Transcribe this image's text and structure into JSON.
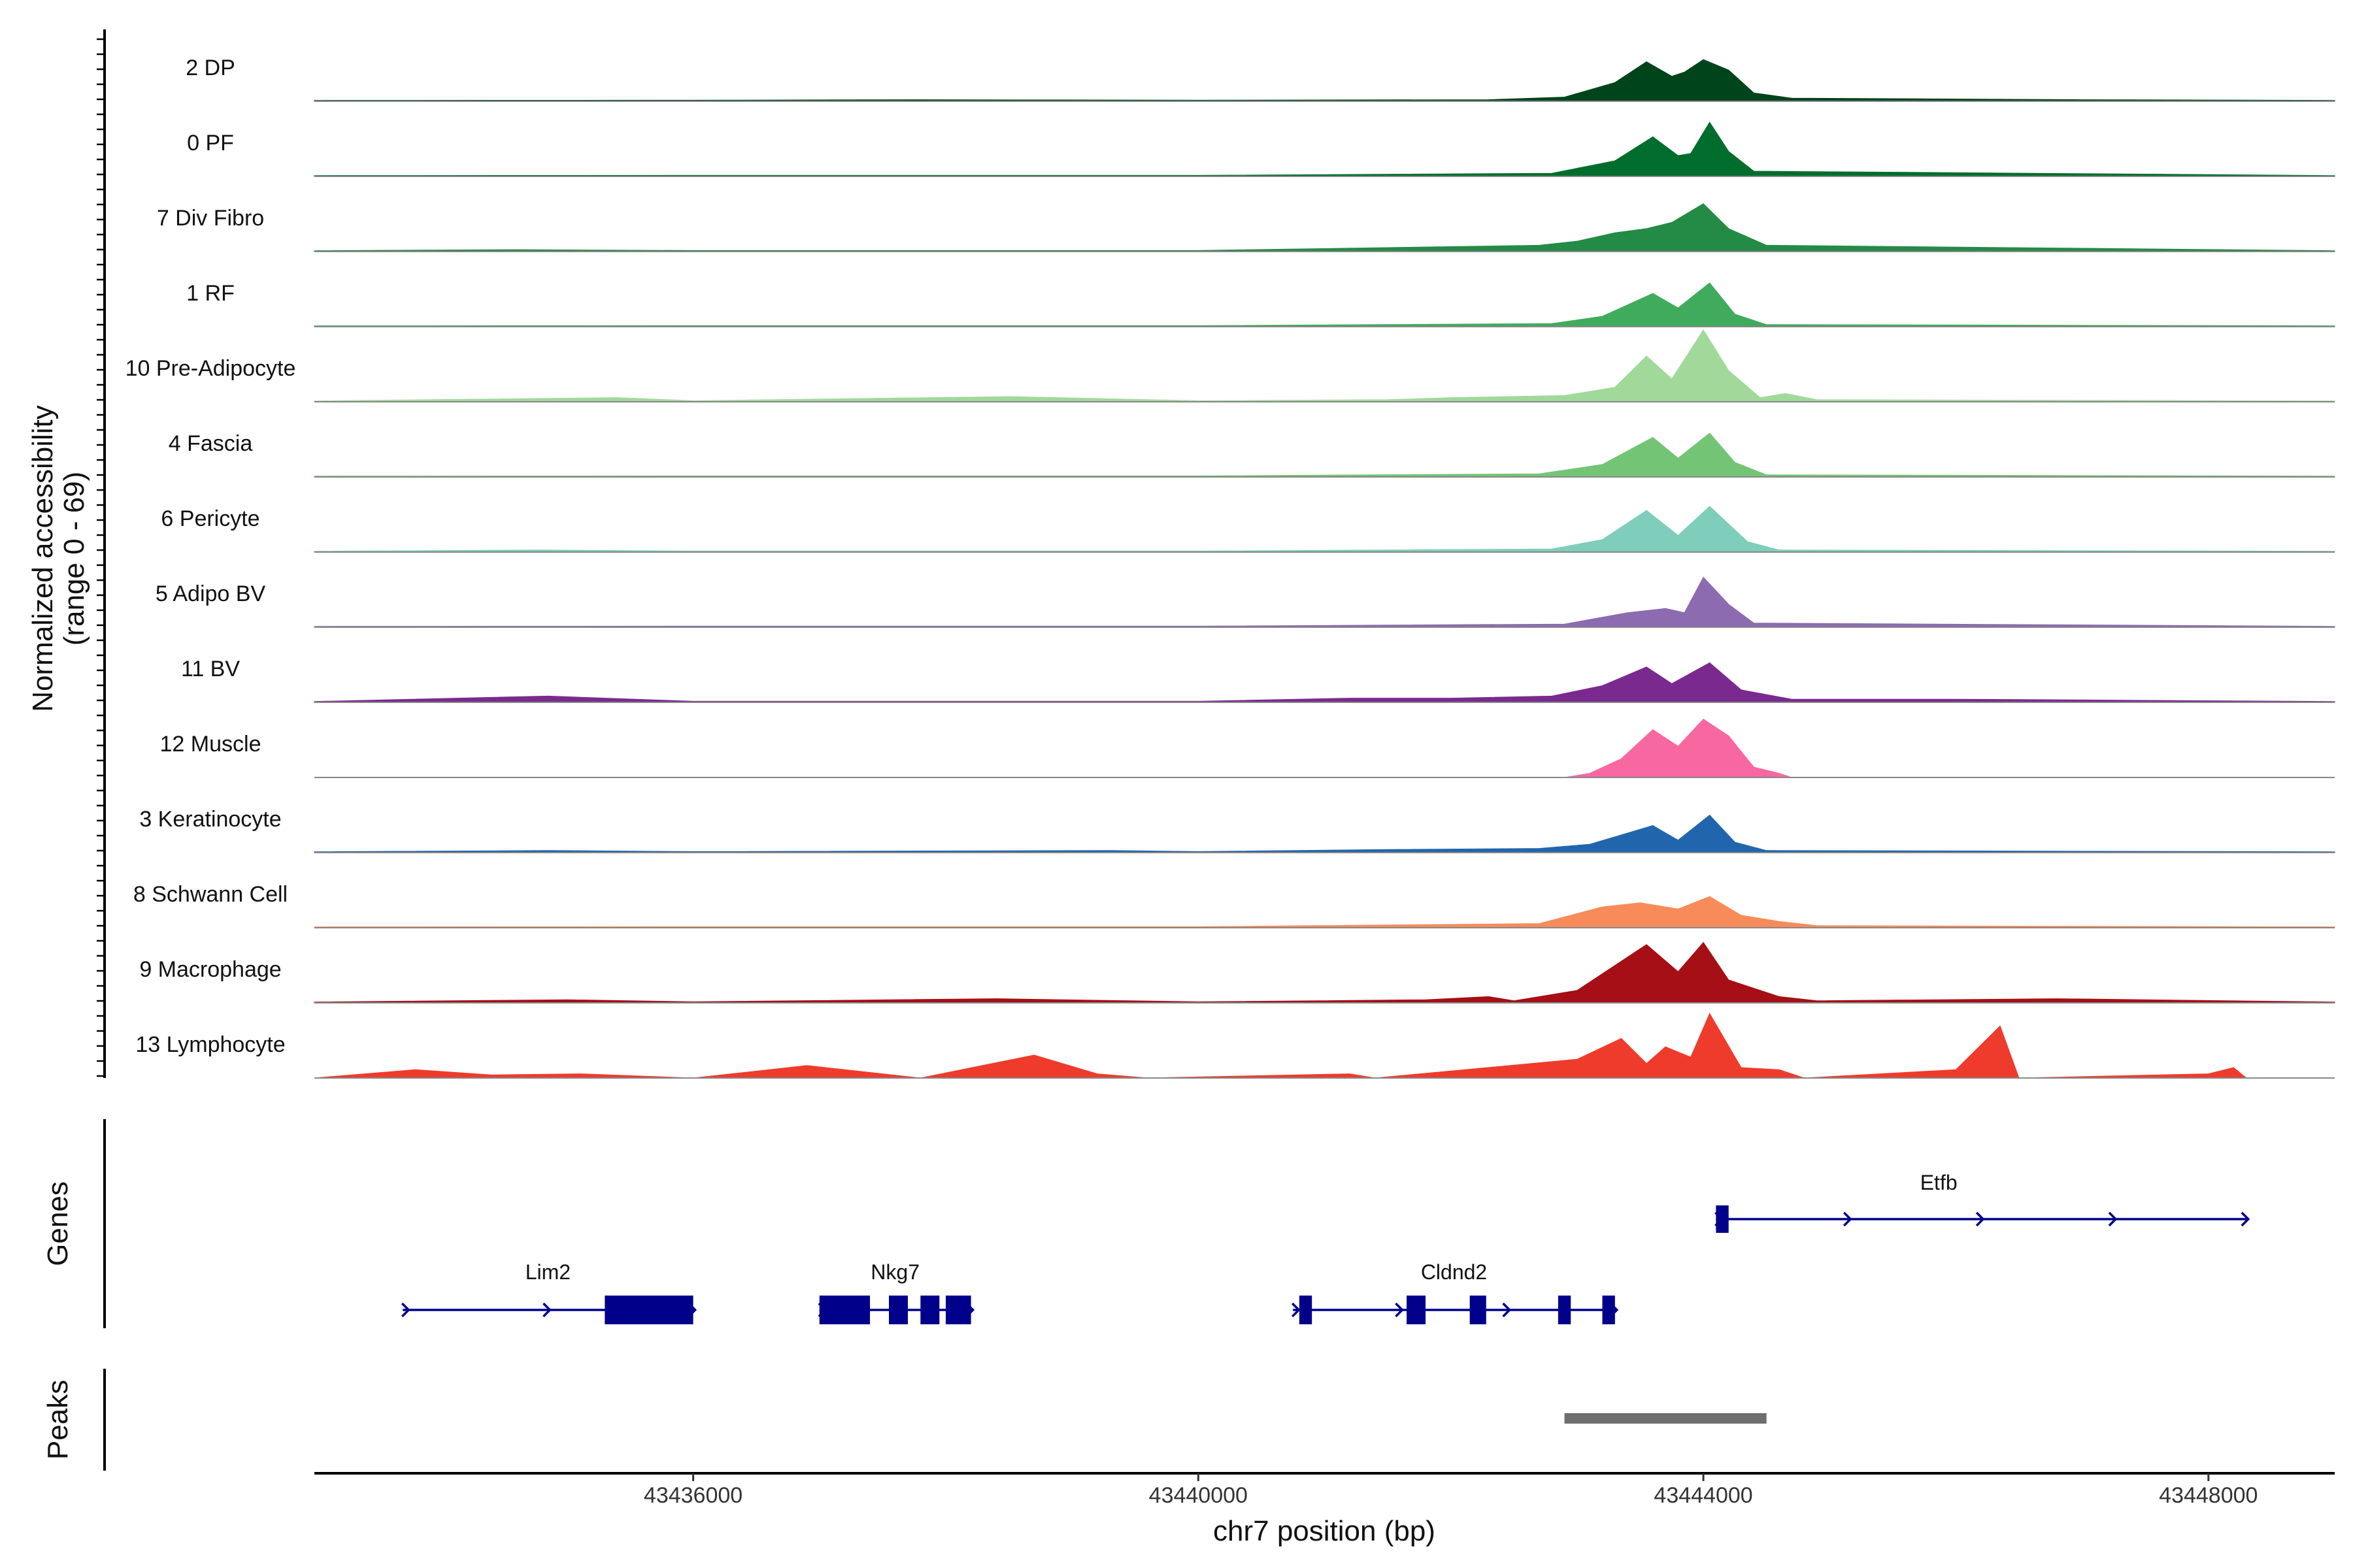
{
  "chart_data": {
    "type": "area",
    "chromosome": "chr7",
    "region": [
      43433000,
      43449000
    ],
    "xlabel": "chr7 position (bp)",
    "ylabel": "Normalized accessibility",
    "ylabel_range": "(range 0 - 69)",
    "ylim": [
      0,
      69
    ],
    "x_ticks": [
      {
        "value": 43436000,
        "label": "43436000"
      },
      {
        "value": 43440000,
        "label": "43440000"
      },
      {
        "value": 43444000,
        "label": "43444000"
      },
      {
        "value": 43448000,
        "label": "43448000"
      }
    ],
    "series": [
      {
        "name": "2 DP",
        "color": "#00441b",
        "values": [
          [
            43433000,
            0.8
          ],
          [
            43436000,
            1
          ],
          [
            43437800,
            1.5
          ],
          [
            43440000,
            1
          ],
          [
            43442300,
            1.5
          ],
          [
            43442900,
            4
          ],
          [
            43443300,
            18
          ],
          [
            43443550,
            38
          ],
          [
            43443750,
            24
          ],
          [
            43443850,
            28
          ],
          [
            43444000,
            40
          ],
          [
            43444200,
            30
          ],
          [
            43444400,
            8
          ],
          [
            43444700,
            3
          ],
          [
            43447000,
            1.5
          ],
          [
            43449000,
            0.8
          ]
        ]
      },
      {
        "name": "0 PF",
        "color": "#006d2c",
        "values": [
          [
            43433000,
            0.8
          ],
          [
            43436000,
            1
          ],
          [
            43440000,
            1
          ],
          [
            43442800,
            3
          ],
          [
            43443300,
            15
          ],
          [
            43443600,
            38
          ],
          [
            43443800,
            20
          ],
          [
            43443900,
            22
          ],
          [
            43444050,
            52
          ],
          [
            43444200,
            24
          ],
          [
            43444400,
            5
          ],
          [
            43449000,
            0.8
          ]
        ]
      },
      {
        "name": "7 Div Fibro",
        "color": "#238b45",
        "values": [
          [
            43433000,
            0.8
          ],
          [
            43434600,
            1.8
          ],
          [
            43436000,
            1
          ],
          [
            43440000,
            1
          ],
          [
            43442700,
            6
          ],
          [
            43443000,
            10
          ],
          [
            43443300,
            18
          ],
          [
            43443550,
            22
          ],
          [
            43443750,
            28
          ],
          [
            43444000,
            46
          ],
          [
            43444200,
            22
          ],
          [
            43444500,
            6
          ],
          [
            43449000,
            0.8
          ]
        ]
      },
      {
        "name": "1 RF",
        "color": "#41ab5d",
        "values": [
          [
            43433000,
            0.8
          ],
          [
            43436000,
            1
          ],
          [
            43440000,
            1
          ],
          [
            43442800,
            3
          ],
          [
            43443200,
            10
          ],
          [
            43443600,
            32
          ],
          [
            43443800,
            18
          ],
          [
            43444050,
            42
          ],
          [
            43444250,
            12
          ],
          [
            43444500,
            2
          ],
          [
            43449000,
            0.8
          ]
        ]
      },
      {
        "name": "10 Pre-Adipocyte",
        "color": "#a1d99b",
        "values": [
          [
            43433000,
            0.8
          ],
          [
            43435400,
            4
          ],
          [
            43436000,
            1
          ],
          [
            43438500,
            5
          ],
          [
            43440000,
            1
          ],
          [
            43441500,
            2
          ],
          [
            43442000,
            4
          ],
          [
            43442900,
            6
          ],
          [
            43443300,
            14
          ],
          [
            43443550,
            44
          ],
          [
            43443750,
            22
          ],
          [
            43444000,
            69
          ],
          [
            43444200,
            30
          ],
          [
            43444450,
            4
          ],
          [
            43444650,
            8
          ],
          [
            43444900,
            2
          ],
          [
            43449000,
            0.8
          ]
        ]
      },
      {
        "name": "4 Fascia",
        "color": "#74c476",
        "values": [
          [
            43433000,
            0.8
          ],
          [
            43436000,
            1
          ],
          [
            43440000,
            1
          ],
          [
            43442700,
            3
          ],
          [
            43443200,
            12
          ],
          [
            43443600,
            38
          ],
          [
            43443800,
            18
          ],
          [
            43444050,
            42
          ],
          [
            43444250,
            14
          ],
          [
            43444500,
            2
          ],
          [
            43449000,
            0.8
          ]
        ]
      },
      {
        "name": "6 Pericyte",
        "color": "#7fcdbb",
        "values": [
          [
            43433000,
            0.8
          ],
          [
            43434800,
            2
          ],
          [
            43436000,
            1
          ],
          [
            43440000,
            1
          ],
          [
            43442800,
            3
          ],
          [
            43443200,
            12
          ],
          [
            43443550,
            40
          ],
          [
            43443800,
            16
          ],
          [
            43444050,
            44
          ],
          [
            43444350,
            10
          ],
          [
            43444600,
            2
          ],
          [
            43449000,
            0.8
          ]
        ]
      },
      {
        "name": "5 Adipo BV",
        "color": "#8c6bb1",
        "values": [
          [
            43433000,
            0.8
          ],
          [
            43436000,
            1
          ],
          [
            43440000,
            1
          ],
          [
            43442900,
            3
          ],
          [
            43443400,
            14
          ],
          [
            43443700,
            18
          ],
          [
            43443850,
            14
          ],
          [
            43444000,
            48
          ],
          [
            43444200,
            22
          ],
          [
            43444400,
            4
          ],
          [
            43449000,
            0.8
          ]
        ]
      },
      {
        "name": "11 BV",
        "color": "#7a2a8e",
        "values": [
          [
            43433000,
            0.8
          ],
          [
            43434850,
            6
          ],
          [
            43436000,
            1
          ],
          [
            43440000,
            1
          ],
          [
            43441200,
            4
          ],
          [
            43442000,
            4
          ],
          [
            43442800,
            6
          ],
          [
            43443200,
            16
          ],
          [
            43443550,
            34
          ],
          [
            43443750,
            18
          ],
          [
            43444050,
            38
          ],
          [
            43444300,
            12
          ],
          [
            43444700,
            3
          ],
          [
            43446000,
            3
          ],
          [
            43449000,
            0.8
          ]
        ]
      },
      {
        "name": "12 Muscle",
        "color": "#f768a1",
        "values": [
          [
            43442900,
            0
          ],
          [
            43443100,
            4
          ],
          [
            43443350,
            18
          ],
          [
            43443600,
            46
          ],
          [
            43443800,
            30
          ],
          [
            43444000,
            56
          ],
          [
            43444200,
            40
          ],
          [
            43444400,
            10
          ],
          [
            43444600,
            4
          ],
          [
            43444700,
            0
          ]
        ]
      },
      {
        "name": "3 Keratinocyte",
        "color": "#2166ac",
        "values": [
          [
            43433000,
            0.8
          ],
          [
            43434850,
            2
          ],
          [
            43436000,
            1
          ],
          [
            43439300,
            2
          ],
          [
            43440000,
            1
          ],
          [
            43441500,
            3
          ],
          [
            43442700,
            4
          ],
          [
            43443100,
            8
          ],
          [
            43443600,
            26
          ],
          [
            43443800,
            12
          ],
          [
            43444050,
            36
          ],
          [
            43444250,
            10
          ],
          [
            43444500,
            2
          ],
          [
            43449000,
            0.8
          ]
        ]
      },
      {
        "name": "8 Schwann Cell",
        "color": "#f78c5a",
        "values": [
          [
            43433000,
            0.8
          ],
          [
            43436000,
            1
          ],
          [
            43440000,
            1
          ],
          [
            43442700,
            4
          ],
          [
            43443200,
            20
          ],
          [
            43443500,
            24
          ],
          [
            43443800,
            18
          ],
          [
            43444050,
            30
          ],
          [
            43444300,
            12
          ],
          [
            43444600,
            6
          ],
          [
            43444900,
            2
          ],
          [
            43449000,
            0.8
          ]
        ]
      },
      {
        "name": "9 Macrophage",
        "color": "#a50f15",
        "values": [
          [
            43433000,
            0.8
          ],
          [
            43435000,
            3
          ],
          [
            43436000,
            1
          ],
          [
            43438400,
            4
          ],
          [
            43440000,
            1
          ],
          [
            43441800,
            3
          ],
          [
            43442300,
            6
          ],
          [
            43442500,
            2
          ],
          [
            43443000,
            12
          ],
          [
            43443550,
            56
          ],
          [
            43443800,
            30
          ],
          [
            43444000,
            58
          ],
          [
            43444200,
            22
          ],
          [
            43444600,
            6
          ],
          [
            43444900,
            2
          ],
          [
            43446800,
            4
          ],
          [
            43449000,
            0.8
          ]
        ]
      },
      {
        "name": "13 Lymphocyte",
        "color": "#ef3b2c",
        "values": [
          [
            43433000,
            0
          ],
          [
            43433800,
            8
          ],
          [
            43434400,
            3
          ],
          [
            43435100,
            4
          ],
          [
            43436000,
            0
          ],
          [
            43436900,
            12
          ],
          [
            43437800,
            0
          ],
          [
            43438700,
            22
          ],
          [
            43439200,
            4
          ],
          [
            43439600,
            0
          ],
          [
            43441200,
            4
          ],
          [
            43441400,
            0
          ],
          [
            43443000,
            18
          ],
          [
            43443350,
            38
          ],
          [
            43443550,
            14
          ],
          [
            43443700,
            30
          ],
          [
            43443900,
            20
          ],
          [
            43444050,
            62
          ],
          [
            43444300,
            10
          ],
          [
            43444600,
            8
          ],
          [
            43444800,
            0
          ],
          [
            43446000,
            8
          ],
          [
            43446350,
            50
          ],
          [
            43446500,
            0
          ],
          [
            43448000,
            4
          ],
          [
            43448200,
            10
          ],
          [
            43448300,
            0
          ],
          [
            43449000,
            0
          ]
        ]
      }
    ],
    "genes_track_label": "Genes",
    "genes": [
      {
        "name": "Etfb",
        "strand": "+",
        "row": 0,
        "start": 43444100,
        "end": 43448300,
        "exons": [
          [
            43444100,
            43444200
          ]
        ]
      },
      {
        "name": "Lim2",
        "strand": "+",
        "row": 1,
        "start": 43433700,
        "end": 43436000,
        "exons": [
          [
            43435300,
            43436000
          ]
        ]
      },
      {
        "name": "Nkg7",
        "strand": "+",
        "row": 1,
        "start": 43437000,
        "end": 43438200,
        "exons": [
          [
            43437000,
            43437400
          ],
          [
            43437550,
            43437700
          ],
          [
            43437800,
            43437950
          ],
          [
            43438000,
            43438200
          ]
        ]
      },
      {
        "name": "Cldnd2",
        "strand": "+",
        "row": 1,
        "start": 43440750,
        "end": 43443300,
        "exons": [
          [
            43440800,
            43440900
          ],
          [
            43441650,
            43441800
          ],
          [
            43442150,
            43442280
          ],
          [
            43442850,
            43442950
          ],
          [
            43443200,
            43443300
          ]
        ]
      }
    ],
    "peaks_track_label": "Peaks",
    "peaks": [
      [
        43442900,
        43444500
      ]
    ]
  }
}
